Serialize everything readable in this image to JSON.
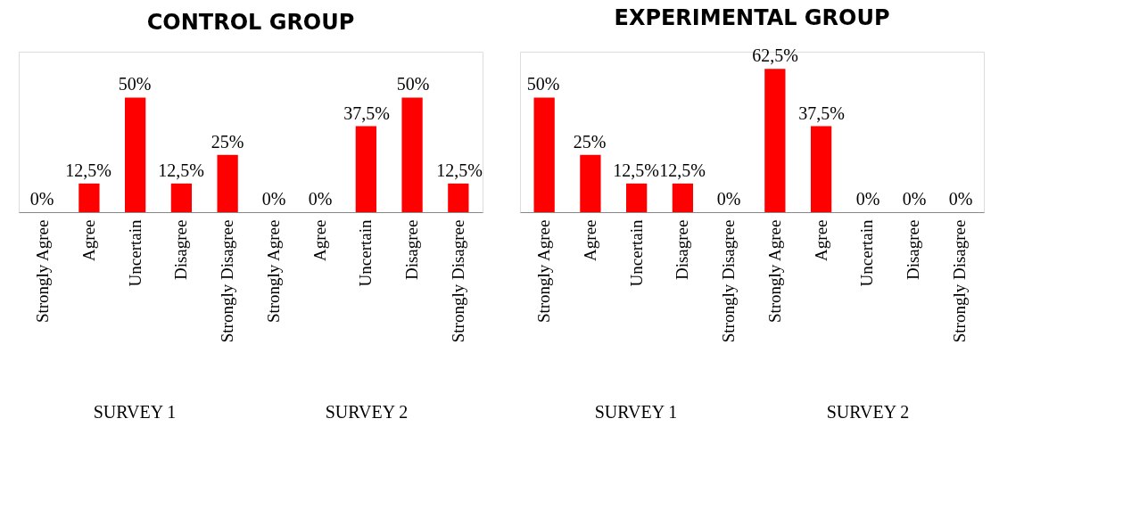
{
  "chart_data": [
    {
      "type": "bar",
      "title": "CONTROL GROUP",
      "categories": [
        "Strongly Agree",
        "Agree",
        "Uncertain",
        "Disagree",
        "Strongly Disagree",
        "Strongly Agree",
        "Agree",
        "Uncertain",
        "Disagree",
        "Strongly Disagree"
      ],
      "values": [
        0,
        12.5,
        50,
        12.5,
        25,
        0,
        0,
        37.5,
        50,
        12.5
      ],
      "color": "#ff0000",
      "value_labels": [
        "0%",
        "12,5%",
        "50%",
        "12,5%",
        "25%",
        "0%",
        "0%",
        "37,5%",
        "50%",
        "12,5%"
      ],
      "annotations": [
        "SURVEY 1",
        "SURVEY 2"
      ],
      "ylim": [
        0,
        70
      ],
      "tick_labels": "x"
    },
    {
      "type": "bar",
      "title": "EXPERIMENTAL GROUP",
      "categories": [
        "Strongly Agree",
        "Agree",
        "Uncertain",
        "Disagree",
        "Strongly Disagree",
        "Strongly Agree",
        "Agree",
        "Uncertain",
        "Disagree",
        "Strongly Disagree"
      ],
      "values": [
        50,
        25,
        12.5,
        12.5,
        0,
        62.5,
        37.5,
        0,
        0,
        0
      ],
      "color": "#ff0000",
      "value_labels": [
        "50%",
        "25%",
        "12,5%",
        "12,5%",
        "0%",
        "62,5%",
        "37,5%",
        "0%",
        "0%",
        "0%"
      ],
      "annotations": [
        "SURVEY 1",
        "SURVEY 2"
      ],
      "ylim": [
        0,
        70
      ],
      "tick_labels": "x"
    }
  ]
}
